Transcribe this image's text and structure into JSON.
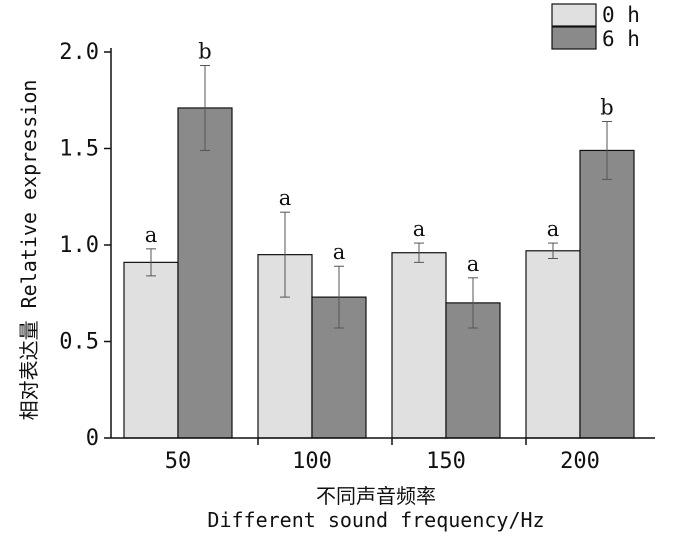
{
  "chart_data": {
    "type": "bar",
    "categories": [
      "50",
      "100",
      "150",
      "200"
    ],
    "series": [
      {
        "name": "0 h",
        "color": "#e0e0e0",
        "values": [
          0.91,
          0.95,
          0.96,
          0.97
        ],
        "errors": [
          0.07,
          0.22,
          0.05,
          0.04
        ],
        "labels": [
          "a",
          "a",
          "a",
          "a"
        ]
      },
      {
        "name": "6 h",
        "color": "#8a8a8a",
        "values": [
          1.71,
          0.73,
          0.7,
          1.49
        ],
        "errors": [
          0.22,
          0.16,
          0.13,
          0.15
        ],
        "labels": [
          "b",
          "a",
          "a",
          "b"
        ]
      }
    ],
    "y_ticks": [
      "0",
      "0.5",
      "1.0",
      "1.5",
      "2.0"
    ],
    "ylim": [
      0,
      2.0
    ],
    "ylabel": "相对表达量 Relative expression",
    "xlabel_line1": "不同声音频率",
    "xlabel_line2": "Different sound frequency/Hz",
    "legend_position": "top-right",
    "grid": false
  }
}
